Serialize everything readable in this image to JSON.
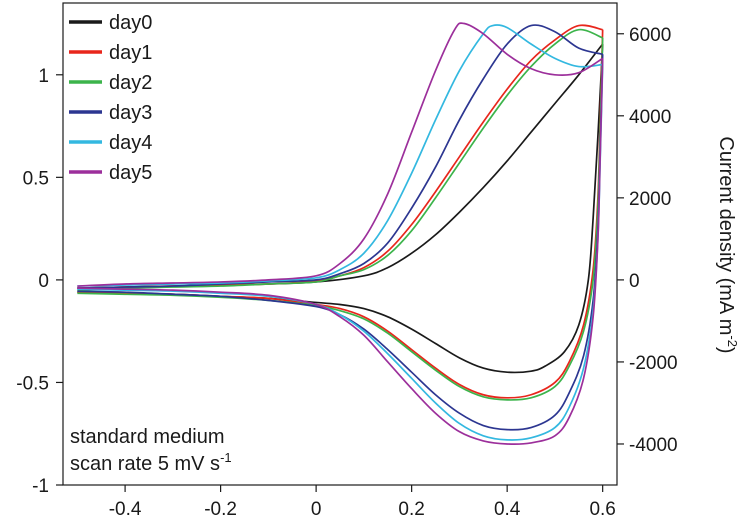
{
  "chart_data": {
    "type": "line",
    "title": "",
    "xlabel": "",
    "ylabel_left": "",
    "ylabel_right": "Current density (mA m",
    "ylabel_right_sup": "-2",
    "ylabel_right_close": ")",
    "xlim": [
      -0.53,
      0.63
    ],
    "ylim_left": [
      -1,
      1.35
    ],
    "ylim_right": [
      -5000,
      6750
    ],
    "x_ticks": [
      -0.4,
      -0.2,
      0,
      0.2,
      0.4,
      0.6
    ],
    "x_tick_labels": [
      "-0.4",
      "-0.2",
      "0",
      "0.2",
      "0.4",
      "0.6"
    ],
    "y_left_ticks": [
      -1,
      -0.5,
      0,
      0.5,
      1
    ],
    "y_left_tick_labels": [
      "-1",
      "-0.5",
      "0",
      "0.5",
      "1"
    ],
    "y_right_ticks": [
      -4000,
      -2000,
      0,
      2000,
      4000,
      6000
    ],
    "y_right_tick_labels": [
      "-4000",
      "-2000",
      "0",
      "2000",
      "4000",
      "6000"
    ],
    "grid": false,
    "legend_position": "top-left",
    "annotation_lines": [
      "standard medium",
      "scan rate 5 mV s",
      "-1"
    ],
    "series": [
      {
        "name": "day0",
        "color": "#1a1a1a",
        "forward": [
          [
            -0.5,
            -0.04
          ],
          [
            -0.4,
            -0.035
          ],
          [
            -0.3,
            -0.03
          ],
          [
            -0.2,
            -0.025
          ],
          [
            -0.1,
            -0.02
          ],
          [
            0,
            -0.01
          ],
          [
            0.1,
            0.02
          ],
          [
            0.15,
            0.06
          ],
          [
            0.2,
            0.13
          ],
          [
            0.25,
            0.22
          ],
          [
            0.3,
            0.33
          ],
          [
            0.35,
            0.45
          ],
          [
            0.4,
            0.58
          ],
          [
            0.45,
            0.72
          ],
          [
            0.5,
            0.86
          ],
          [
            0.55,
            1.0
          ],
          [
            0.6,
            1.15
          ]
        ],
        "reverse": [
          [
            0.6,
            1.15
          ],
          [
            0.59,
            0.7
          ],
          [
            0.58,
            0.3
          ],
          [
            0.57,
            0.0
          ],
          [
            0.55,
            -0.22
          ],
          [
            0.52,
            -0.35
          ],
          [
            0.48,
            -0.42
          ],
          [
            0.45,
            -0.445
          ],
          [
            0.4,
            -0.45
          ],
          [
            0.35,
            -0.43
          ],
          [
            0.3,
            -0.38
          ],
          [
            0.25,
            -0.31
          ],
          [
            0.2,
            -0.24
          ],
          [
            0.15,
            -0.18
          ],
          [
            0.1,
            -0.14
          ],
          [
            0.05,
            -0.12
          ],
          [
            0,
            -0.11
          ],
          [
            -0.1,
            -0.09
          ],
          [
            -0.2,
            -0.08
          ],
          [
            -0.3,
            -0.07
          ],
          [
            -0.4,
            -0.065
          ],
          [
            -0.5,
            -0.06
          ]
        ]
      },
      {
        "name": "day1",
        "color": "#e8261c",
        "forward": [
          [
            -0.5,
            -0.04
          ],
          [
            -0.4,
            -0.035
          ],
          [
            -0.3,
            -0.03
          ],
          [
            -0.2,
            -0.025
          ],
          [
            -0.1,
            -0.02
          ],
          [
            0,
            -0.005
          ],
          [
            0.05,
            0.02
          ],
          [
            0.1,
            0.06
          ],
          [
            0.15,
            0.14
          ],
          [
            0.2,
            0.27
          ],
          [
            0.25,
            0.43
          ],
          [
            0.3,
            0.6
          ],
          [
            0.35,
            0.77
          ],
          [
            0.4,
            0.93
          ],
          [
            0.45,
            1.07
          ],
          [
            0.5,
            1.17
          ],
          [
            0.55,
            1.24
          ],
          [
            0.6,
            1.22
          ]
        ],
        "reverse": [
          [
            0.6,
            1.22
          ],
          [
            0.595,
            0.8
          ],
          [
            0.59,
            0.4
          ],
          [
            0.58,
            0.05
          ],
          [
            0.56,
            -0.22
          ],
          [
            0.53,
            -0.4
          ],
          [
            0.5,
            -0.5
          ],
          [
            0.45,
            -0.56
          ],
          [
            0.4,
            -0.575
          ],
          [
            0.35,
            -0.56
          ],
          [
            0.3,
            -0.51
          ],
          [
            0.25,
            -0.43
          ],
          [
            0.2,
            -0.34
          ],
          [
            0.15,
            -0.25
          ],
          [
            0.1,
            -0.18
          ],
          [
            0.05,
            -0.14
          ],
          [
            0,
            -0.12
          ],
          [
            -0.1,
            -0.09
          ],
          [
            -0.2,
            -0.08
          ],
          [
            -0.3,
            -0.07
          ],
          [
            -0.4,
            -0.065
          ],
          [
            -0.5,
            -0.06
          ]
        ]
      },
      {
        "name": "day2",
        "color": "#3cb44b",
        "forward": [
          [
            -0.5,
            -0.05
          ],
          [
            -0.4,
            -0.04
          ],
          [
            -0.3,
            -0.035
          ],
          [
            -0.2,
            -0.03
          ],
          [
            -0.1,
            -0.02
          ],
          [
            0,
            -0.01
          ],
          [
            0.05,
            0.02
          ],
          [
            0.1,
            0.05
          ],
          [
            0.15,
            0.12
          ],
          [
            0.2,
            0.24
          ],
          [
            0.25,
            0.4
          ],
          [
            0.3,
            0.57
          ],
          [
            0.35,
            0.74
          ],
          [
            0.4,
            0.9
          ],
          [
            0.45,
            1.04
          ],
          [
            0.5,
            1.15
          ],
          [
            0.55,
            1.22
          ],
          [
            0.6,
            1.18
          ]
        ],
        "reverse": [
          [
            0.6,
            1.18
          ],
          [
            0.595,
            0.75
          ],
          [
            0.59,
            0.35
          ],
          [
            0.58,
            0.0
          ],
          [
            0.56,
            -0.25
          ],
          [
            0.53,
            -0.42
          ],
          [
            0.5,
            -0.52
          ],
          [
            0.45,
            -0.575
          ],
          [
            0.4,
            -0.585
          ],
          [
            0.35,
            -0.57
          ],
          [
            0.3,
            -0.52
          ],
          [
            0.25,
            -0.44
          ],
          [
            0.2,
            -0.35
          ],
          [
            0.15,
            -0.26
          ],
          [
            0.1,
            -0.19
          ],
          [
            0.05,
            -0.15
          ],
          [
            0,
            -0.125
          ],
          [
            -0.1,
            -0.1
          ],
          [
            -0.2,
            -0.085
          ],
          [
            -0.3,
            -0.075
          ],
          [
            -0.4,
            -0.07
          ],
          [
            -0.5,
            -0.065
          ]
        ]
      },
      {
        "name": "day3",
        "color": "#2c3691",
        "forward": [
          [
            -0.5,
            -0.04
          ],
          [
            -0.4,
            -0.035
          ],
          [
            -0.3,
            -0.03
          ],
          [
            -0.2,
            -0.02
          ],
          [
            -0.1,
            -0.01
          ],
          [
            0,
            0.0
          ],
          [
            0.05,
            0.03
          ],
          [
            0.1,
            0.08
          ],
          [
            0.15,
            0.18
          ],
          [
            0.2,
            0.35
          ],
          [
            0.25,
            0.55
          ],
          [
            0.3,
            0.78
          ],
          [
            0.35,
            0.98
          ],
          [
            0.4,
            1.15
          ],
          [
            0.45,
            1.24
          ],
          [
            0.5,
            1.21
          ],
          [
            0.55,
            1.13
          ],
          [
            0.6,
            1.1
          ]
        ],
        "reverse": [
          [
            0.6,
            1.1
          ],
          [
            0.595,
            0.65
          ],
          [
            0.59,
            0.25
          ],
          [
            0.58,
            -0.1
          ],
          [
            0.56,
            -0.37
          ],
          [
            0.53,
            -0.55
          ],
          [
            0.5,
            -0.66
          ],
          [
            0.45,
            -0.72
          ],
          [
            0.4,
            -0.73
          ],
          [
            0.35,
            -0.71
          ],
          [
            0.3,
            -0.65
          ],
          [
            0.25,
            -0.56
          ],
          [
            0.2,
            -0.45
          ],
          [
            0.15,
            -0.34
          ],
          [
            0.1,
            -0.24
          ],
          [
            0.05,
            -0.17
          ],
          [
            0,
            -0.13
          ],
          [
            -0.1,
            -0.1
          ],
          [
            -0.2,
            -0.08
          ],
          [
            -0.3,
            -0.07
          ],
          [
            -0.4,
            -0.06
          ],
          [
            -0.5,
            -0.055
          ]
        ]
      },
      {
        "name": "day4",
        "color": "#33b8e0",
        "forward": [
          [
            -0.5,
            -0.03
          ],
          [
            -0.4,
            -0.025
          ],
          [
            -0.3,
            -0.02
          ],
          [
            -0.2,
            -0.015
          ],
          [
            -0.1,
            -0.005
          ],
          [
            0,
            0.01
          ],
          [
            0.05,
            0.05
          ],
          [
            0.1,
            0.13
          ],
          [
            0.15,
            0.29
          ],
          [
            0.2,
            0.52
          ],
          [
            0.25,
            0.78
          ],
          [
            0.3,
            1.02
          ],
          [
            0.35,
            1.2
          ],
          [
            0.37,
            1.24
          ],
          [
            0.4,
            1.23
          ],
          [
            0.45,
            1.15
          ],
          [
            0.5,
            1.08
          ],
          [
            0.55,
            1.04
          ],
          [
            0.6,
            1.05
          ]
        ],
        "reverse": [
          [
            0.6,
            1.05
          ],
          [
            0.595,
            0.6
          ],
          [
            0.59,
            0.2
          ],
          [
            0.58,
            -0.15
          ],
          [
            0.56,
            -0.43
          ],
          [
            0.53,
            -0.62
          ],
          [
            0.5,
            -0.72
          ],
          [
            0.45,
            -0.77
          ],
          [
            0.4,
            -0.78
          ],
          [
            0.35,
            -0.76
          ],
          [
            0.3,
            -0.7
          ],
          [
            0.25,
            -0.6
          ],
          [
            0.2,
            -0.48
          ],
          [
            0.15,
            -0.36
          ],
          [
            0.1,
            -0.25
          ],
          [
            0.05,
            -0.17
          ],
          [
            0,
            -0.12
          ],
          [
            -0.1,
            -0.08
          ],
          [
            -0.2,
            -0.065
          ],
          [
            -0.3,
            -0.055
          ],
          [
            -0.4,
            -0.05
          ],
          [
            -0.5,
            -0.045
          ]
        ]
      },
      {
        "name": "day5",
        "color": "#9c2f9b",
        "forward": [
          [
            -0.5,
            -0.03
          ],
          [
            -0.4,
            -0.02
          ],
          [
            -0.3,
            -0.015
          ],
          [
            -0.2,
            -0.01
          ],
          [
            -0.1,
            0.0
          ],
          [
            0,
            0.02
          ],
          [
            0.05,
            0.08
          ],
          [
            0.1,
            0.2
          ],
          [
            0.15,
            0.42
          ],
          [
            0.2,
            0.72
          ],
          [
            0.25,
            1.02
          ],
          [
            0.29,
            1.22
          ],
          [
            0.31,
            1.25
          ],
          [
            0.35,
            1.2
          ],
          [
            0.4,
            1.1
          ],
          [
            0.45,
            1.03
          ],
          [
            0.5,
            1.0
          ],
          [
            0.55,
            1.01
          ],
          [
            0.6,
            1.08
          ]
        ],
        "reverse": [
          [
            0.6,
            1.08
          ],
          [
            0.595,
            0.62
          ],
          [
            0.59,
            0.2
          ],
          [
            0.58,
            -0.18
          ],
          [
            0.56,
            -0.48
          ],
          [
            0.53,
            -0.67
          ],
          [
            0.5,
            -0.76
          ],
          [
            0.45,
            -0.795
          ],
          [
            0.4,
            -0.8
          ],
          [
            0.35,
            -0.785
          ],
          [
            0.3,
            -0.74
          ],
          [
            0.25,
            -0.65
          ],
          [
            0.2,
            -0.53
          ],
          [
            0.15,
            -0.4
          ],
          [
            0.1,
            -0.27
          ],
          [
            0.05,
            -0.18
          ],
          [
            0,
            -0.12
          ],
          [
            -0.1,
            -0.075
          ],
          [
            -0.2,
            -0.06
          ],
          [
            -0.3,
            -0.05
          ],
          [
            -0.4,
            -0.045
          ],
          [
            -0.5,
            -0.04
          ]
        ]
      }
    ]
  }
}
